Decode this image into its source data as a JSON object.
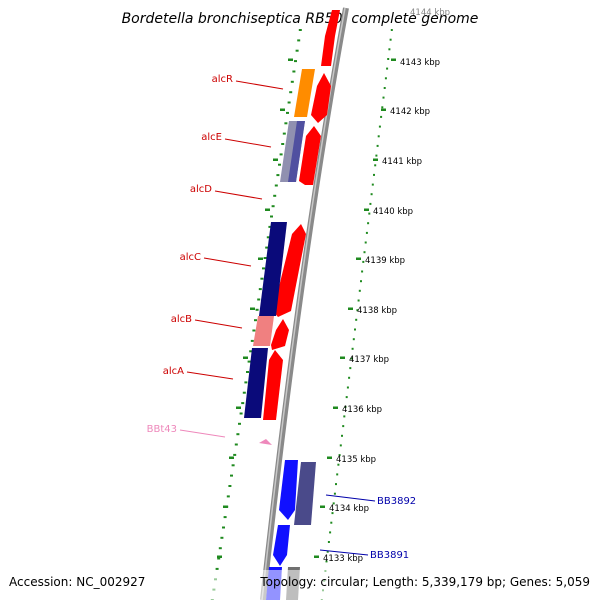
{
  "title": "Bordetella bronchiseptica RB50, complete genome",
  "footer": {
    "accession": "Accession: NC_002927",
    "summary": "Topology: circular; Length: 5,339,179 bp; Genes: 5,059"
  },
  "colors": {
    "backbone": "#8a8a8a",
    "tick": "#1f8a1f",
    "forward_label": "#c00000",
    "reverse_label": "#0000aa",
    "rna_label": "#ee88bb"
  },
  "scale_labels": [
    "4144 kbp",
    "4143 kbp",
    "4142 kbp",
    "4141 kbp",
    "4140 kbp",
    "4139 kbp",
    "4138 kbp",
    "4137 kbp",
    "4136 kbp",
    "4135 kbp",
    "4134 kbp",
    "4133 kbp"
  ],
  "gene_labels": [
    {
      "text": "alcR",
      "strand": "forward"
    },
    {
      "text": "alcE",
      "strand": "forward"
    },
    {
      "text": "alcD",
      "strand": "forward"
    },
    {
      "text": "alcC",
      "strand": "forward"
    },
    {
      "text": "alcB",
      "strand": "forward"
    },
    {
      "text": "alcA",
      "strand": "forward"
    },
    {
      "text": "BBt43",
      "strand": "rna"
    },
    {
      "text": "BB3892",
      "strand": "reverse"
    },
    {
      "text": "BB3891",
      "strand": "reverse"
    }
  ]
}
